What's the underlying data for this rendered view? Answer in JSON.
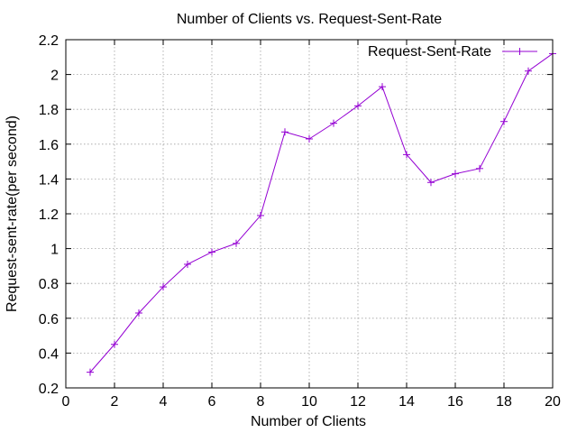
{
  "chart_data": {
    "type": "line",
    "title": "Number of Clients vs. Request-Sent-Rate",
    "xlabel": "Number of Clients",
    "ylabel": "Request-sent-rate(per second)",
    "xlim": [
      0,
      20
    ],
    "ylim": [
      0.2,
      2.2
    ],
    "xticks": [
      0,
      2,
      4,
      6,
      8,
      10,
      12,
      14,
      16,
      18,
      20
    ],
    "yticks": [
      0.2,
      0.4,
      0.6,
      0.8,
      1,
      1.2,
      1.4,
      1.6,
      1.8,
      2,
      2.2
    ],
    "xtick_labels": [
      "0",
      "2",
      "4",
      "6",
      "8",
      "10",
      "12",
      "14",
      "16",
      "18",
      "20"
    ],
    "ytick_labels": [
      "0.2",
      "0.4",
      "0.6",
      "0.8",
      "1",
      "1.2",
      "1.4",
      "1.6",
      "1.8",
      "2",
      "2.2"
    ],
    "grid": true,
    "legend_position": "top-right",
    "series": [
      {
        "name": "Request-Sent-Rate",
        "color": "#9400d3",
        "marker": "plus",
        "x": [
          1,
          2,
          3,
          4,
          5,
          6,
          7,
          8,
          9,
          10,
          11,
          12,
          13,
          14,
          15,
          16,
          17,
          18,
          19,
          20
        ],
        "y": [
          0.29,
          0.45,
          0.63,
          0.78,
          0.91,
          0.98,
          1.03,
          1.19,
          1.67,
          1.63,
          1.72,
          1.82,
          1.93,
          1.54,
          1.38,
          1.43,
          1.46,
          1.73,
          2.02,
          2.12
        ]
      }
    ]
  }
}
